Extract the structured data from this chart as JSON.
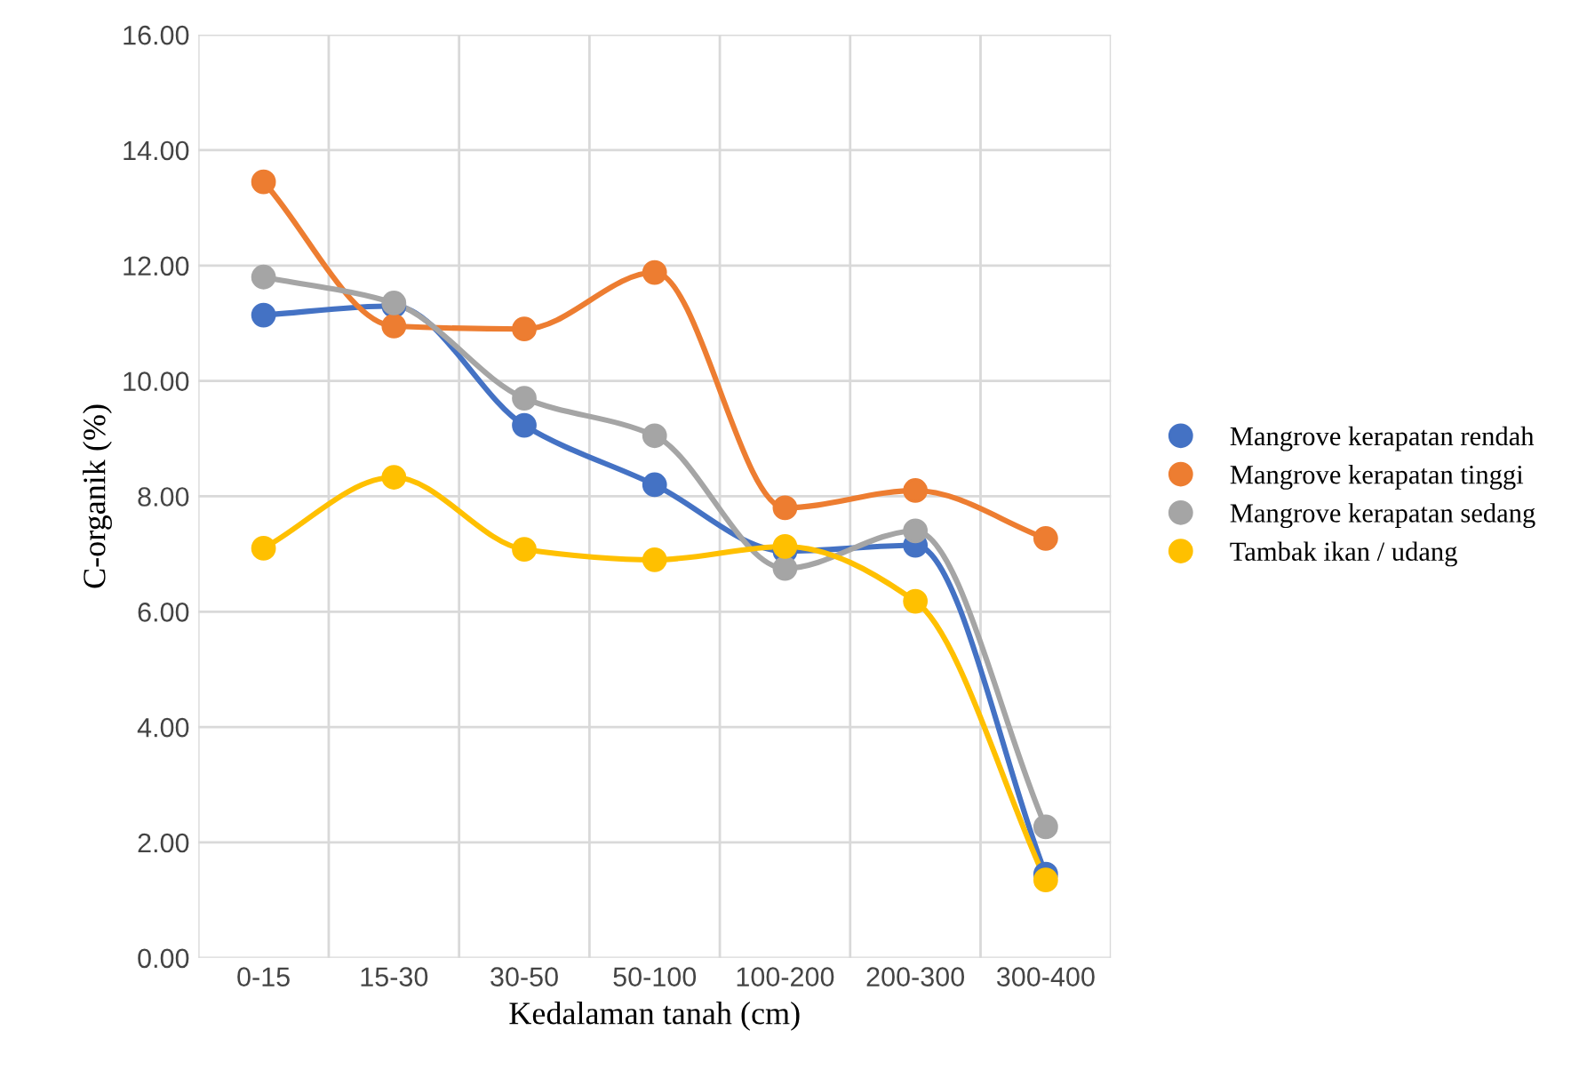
{
  "chart_data": {
    "type": "line",
    "xlabel": "Kedalaman tanah (cm)",
    "ylabel": "C-organik (%)",
    "categories": [
      "0-15",
      "15-30",
      "30-50",
      "50-100",
      "100-200",
      "200-300",
      "300-400"
    ],
    "series": [
      {
        "name": "Mangrove kerapatan rendah",
        "color": "#4472c4",
        "values": [
          11.14,
          11.3,
          9.23,
          8.2,
          7.05,
          7.15,
          1.45
        ]
      },
      {
        "name": "Mangrove kerapatan tinggi",
        "color": "#ed7d31",
        "values": [
          13.45,
          10.95,
          10.9,
          11.88,
          7.8,
          8.1,
          7.27
        ]
      },
      {
        "name": "Mangrove kerapatan sedang",
        "color": "#a5a5a5",
        "values": [
          11.8,
          11.35,
          9.7,
          9.05,
          6.75,
          7.4,
          2.27
        ]
      },
      {
        "name": "Tambak ikan / udang",
        "color": "#ffc000",
        "values": [
          7.1,
          8.33,
          7.08,
          6.9,
          7.13,
          6.18,
          1.35
        ]
      }
    ],
    "ylim": [
      0,
      16
    ],
    "yticks": [
      {
        "value": 0,
        "label": "0.00"
      },
      {
        "value": 2,
        "label": "2.00"
      },
      {
        "value": 4,
        "label": "4.00"
      },
      {
        "value": 6,
        "label": "6.00"
      },
      {
        "value": 8,
        "label": "8.00"
      },
      {
        "value": 10,
        "label": "10.00"
      },
      {
        "value": 12,
        "label": "12.00"
      },
      {
        "value": 14,
        "label": "14.00"
      },
      {
        "value": 16,
        "label": "16.00"
      }
    ],
    "grid": true,
    "legend": "right",
    "marker": "circle",
    "line_style": "solid"
  }
}
